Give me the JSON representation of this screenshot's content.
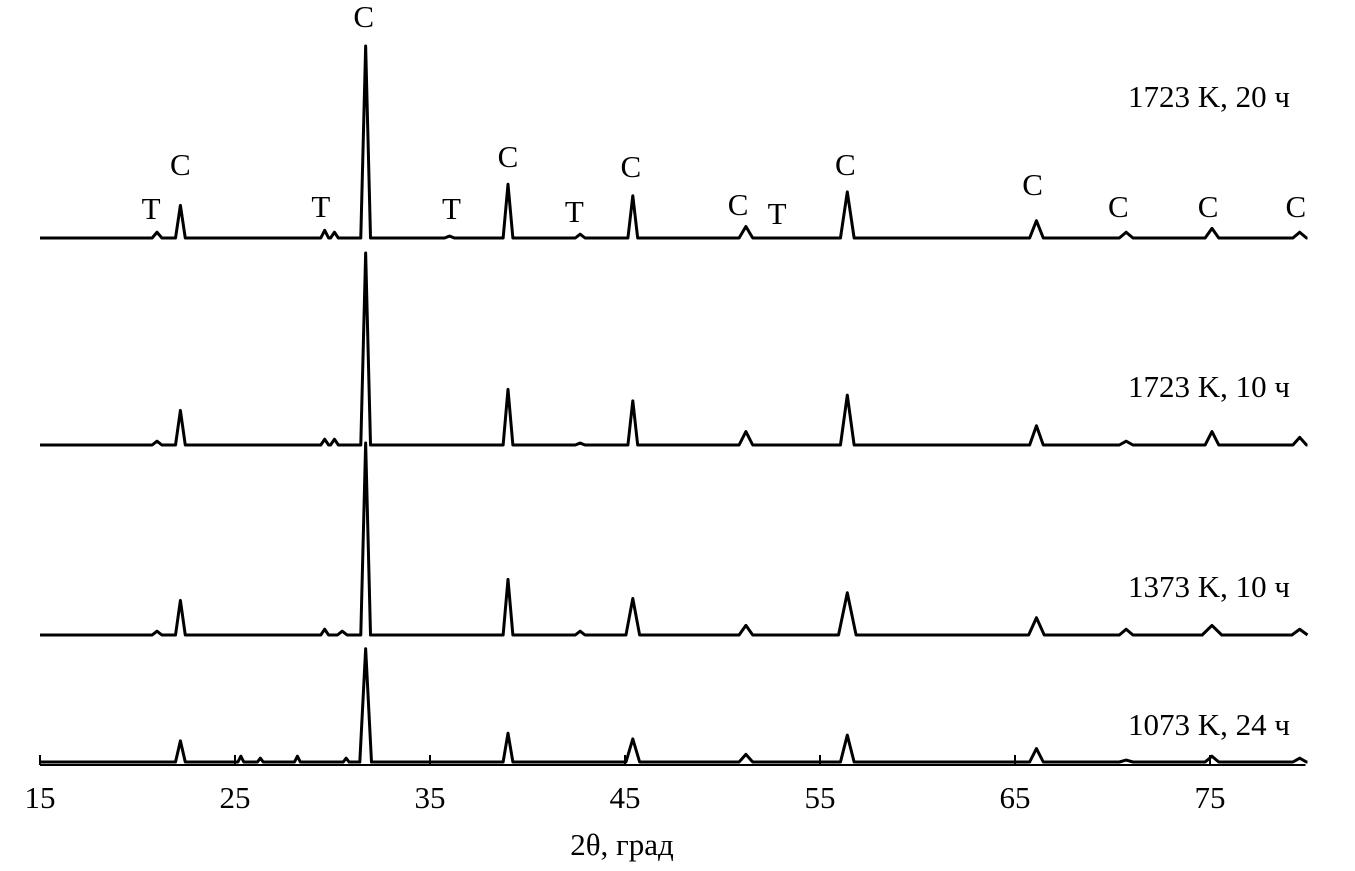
{
  "chart_data": {
    "type": "line",
    "x_label": "2θ, град",
    "xlim": [
      15,
      80
    ],
    "xticks": [
      15,
      25,
      35,
      45,
      55,
      65,
      75
    ],
    "ylim": [
      0,
      100
    ],
    "series": [
      {
        "name": "1723 K, 20 ч",
        "color": "#000000",
        "x": [
          15,
          20.75,
          21,
          21.25,
          21.95,
          22.2,
          22.45,
          29.4,
          29.6,
          29.8,
          29.9,
          30.1,
          30.3,
          31.45,
          31.7,
          31.95,
          35.75,
          36,
          36.25,
          38.75,
          39,
          39.25,
          42.45,
          42.7,
          42.95,
          45.15,
          45.4,
          45.65,
          50.85,
          51.2,
          51.55,
          56.05,
          56.4,
          56.75,
          65.75,
          66.1,
          66.45,
          70.35,
          70.7,
          71.05,
          74.75,
          75.1,
          75.45,
          79.25,
          79.6,
          79.95,
          80
        ],
        "values": [
          0,
          0,
          3,
          0,
          0,
          17,
          0,
          0,
          4,
          0,
          0,
          3,
          0,
          0,
          100,
          0,
          0,
          1,
          0,
          0,
          28,
          0,
          0,
          2,
          0,
          0,
          22,
          0,
          0,
          6,
          0,
          0,
          24,
          0,
          0,
          9,
          0,
          0,
          3,
          0,
          0,
          5,
          0,
          0,
          3,
          0,
          0
        ]
      },
      {
        "name": "1723 K, 10 ч",
        "color": "#000000",
        "x": [
          15,
          20.75,
          21,
          21.25,
          21.95,
          22.2,
          22.45,
          29.4,
          29.6,
          29.8,
          29.9,
          30.1,
          30.3,
          31.45,
          31.7,
          31.95,
          38.75,
          39,
          39.25,
          42.45,
          42.7,
          42.95,
          45.15,
          45.4,
          45.65,
          50.85,
          51.2,
          51.55,
          56.05,
          56.4,
          56.75,
          65.75,
          66.1,
          66.45,
          70.35,
          70.7,
          71.05,
          74.75,
          75.1,
          75.45,
          79.25,
          79.6,
          79.95,
          80
        ],
        "values": [
          0,
          0,
          2,
          0,
          0,
          18,
          0,
          0,
          3,
          0,
          0,
          3,
          0,
          0,
          100,
          0,
          0,
          29,
          0,
          0,
          1,
          0,
          0,
          23,
          0,
          0,
          7,
          0,
          0,
          26,
          0,
          0,
          10,
          0,
          0,
          2,
          0,
          0,
          7,
          0,
          0,
          4,
          0,
          0
        ]
      },
      {
        "name": "1373 K, 10 ч",
        "color": "#000000",
        "x": [
          15,
          20.75,
          21,
          21.25,
          21.95,
          22.2,
          22.45,
          29.4,
          29.6,
          29.8,
          30.25,
          30.5,
          30.75,
          31.45,
          31.7,
          31.95,
          38.75,
          39,
          39.25,
          42.45,
          42.7,
          42.95,
          45.05,
          45.4,
          45.75,
          50.85,
          51.2,
          51.55,
          55.95,
          56.4,
          56.85,
          65.7,
          66.1,
          66.5,
          70.35,
          70.7,
          71.05,
          74.6,
          75.1,
          75.6,
          79.2,
          79.6,
          80
        ],
        "values": [
          0,
          0,
          2,
          0,
          0,
          18,
          0,
          0,
          3,
          0,
          0,
          2,
          0,
          0,
          100,
          0,
          0,
          29,
          0,
          0,
          2,
          0,
          0,
          19,
          0,
          0,
          5,
          0,
          0,
          22,
          0,
          0,
          9,
          0,
          0,
          3,
          0,
          0,
          5,
          0,
          0,
          3,
          0
        ]
      },
      {
        "name": "1073 K, 24 ч",
        "color": "#000000",
        "x": [
          15,
          21.95,
          22.2,
          22.45,
          25.15,
          25.3,
          25.45,
          26.15,
          26.3,
          26.45,
          28.05,
          28.2,
          28.35,
          30.55,
          30.7,
          30.85,
          31.4,
          31.7,
          32,
          38.75,
          39,
          39.25,
          45.05,
          45.4,
          45.75,
          50.85,
          51.2,
          51.55,
          56.05,
          56.4,
          56.75,
          65.75,
          66.1,
          66.45,
          70.35,
          70.7,
          71.05,
          74.75,
          75.1,
          75.45,
          79.25,
          79.6,
          79.95,
          80
        ],
        "values": [
          0,
          0,
          11,
          0,
          0,
          3,
          0,
          0,
          2,
          0,
          0,
          3,
          0,
          0,
          2,
          0,
          0,
          59,
          0,
          0,
          15,
          0,
          0,
          12,
          0,
          0,
          4,
          0,
          0,
          14,
          0,
          0,
          7,
          0,
          0,
          1,
          0,
          0,
          3,
          0,
          0,
          2,
          0,
          0
        ]
      }
    ],
    "annotations": [
      {
        "text": "T",
        "x": 20.7
      },
      {
        "text": "C",
        "x": 22.2
      },
      {
        "text": "T",
        "x": 29.4
      },
      {
        "text": "C",
        "x": 31.6
      },
      {
        "text": "T",
        "x": 36.1
      },
      {
        "text": "C",
        "x": 39
      },
      {
        "text": "T",
        "x": 42.4
      },
      {
        "text": "C",
        "x": 45.3
      },
      {
        "text": "C",
        "x": 50.8
      },
      {
        "text": "T",
        "x": 52.8
      },
      {
        "text": "C",
        "x": 56.3
      },
      {
        "text": "C",
        "x": 65.9
      },
      {
        "text": "C",
        "x": 70.3
      },
      {
        "text": "C",
        "x": 74.9
      },
      {
        "text": "C",
        "x": 79.4
      }
    ]
  }
}
